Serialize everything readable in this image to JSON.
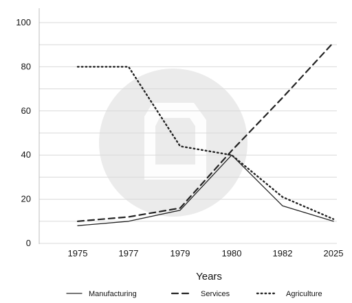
{
  "chart_data": {
    "type": "line",
    "title": "",
    "xlabel": "Years",
    "ylabel": "",
    "categories": [
      "1975",
      "1977",
      "1979",
      "1980",
      "1982",
      "2025"
    ],
    "y_ticks": [
      "0",
      "20",
      "40",
      "60",
      "80",
      "100"
    ],
    "ylim": [
      0,
      100
    ],
    "grid": "horizontal",
    "legend_position": "bottom",
    "series": [
      {
        "name": "Manufacturing",
        "style": "solid",
        "values": [
          8,
          10,
          15,
          40,
          17,
          10
        ]
      },
      {
        "name": "Services",
        "style": "dashed",
        "values": [
          10,
          12,
          16,
          42,
          66,
          91
        ]
      },
      {
        "name": "Agriculture",
        "style": "dotted",
        "values": [
          80,
          80,
          44,
          40,
          21,
          11
        ]
      }
    ],
    "colors": {
      "line": "#222222",
      "grid": "#d9d9d9",
      "axis": "#bdbdbd",
      "watermark": "#e8e8e8"
    }
  }
}
